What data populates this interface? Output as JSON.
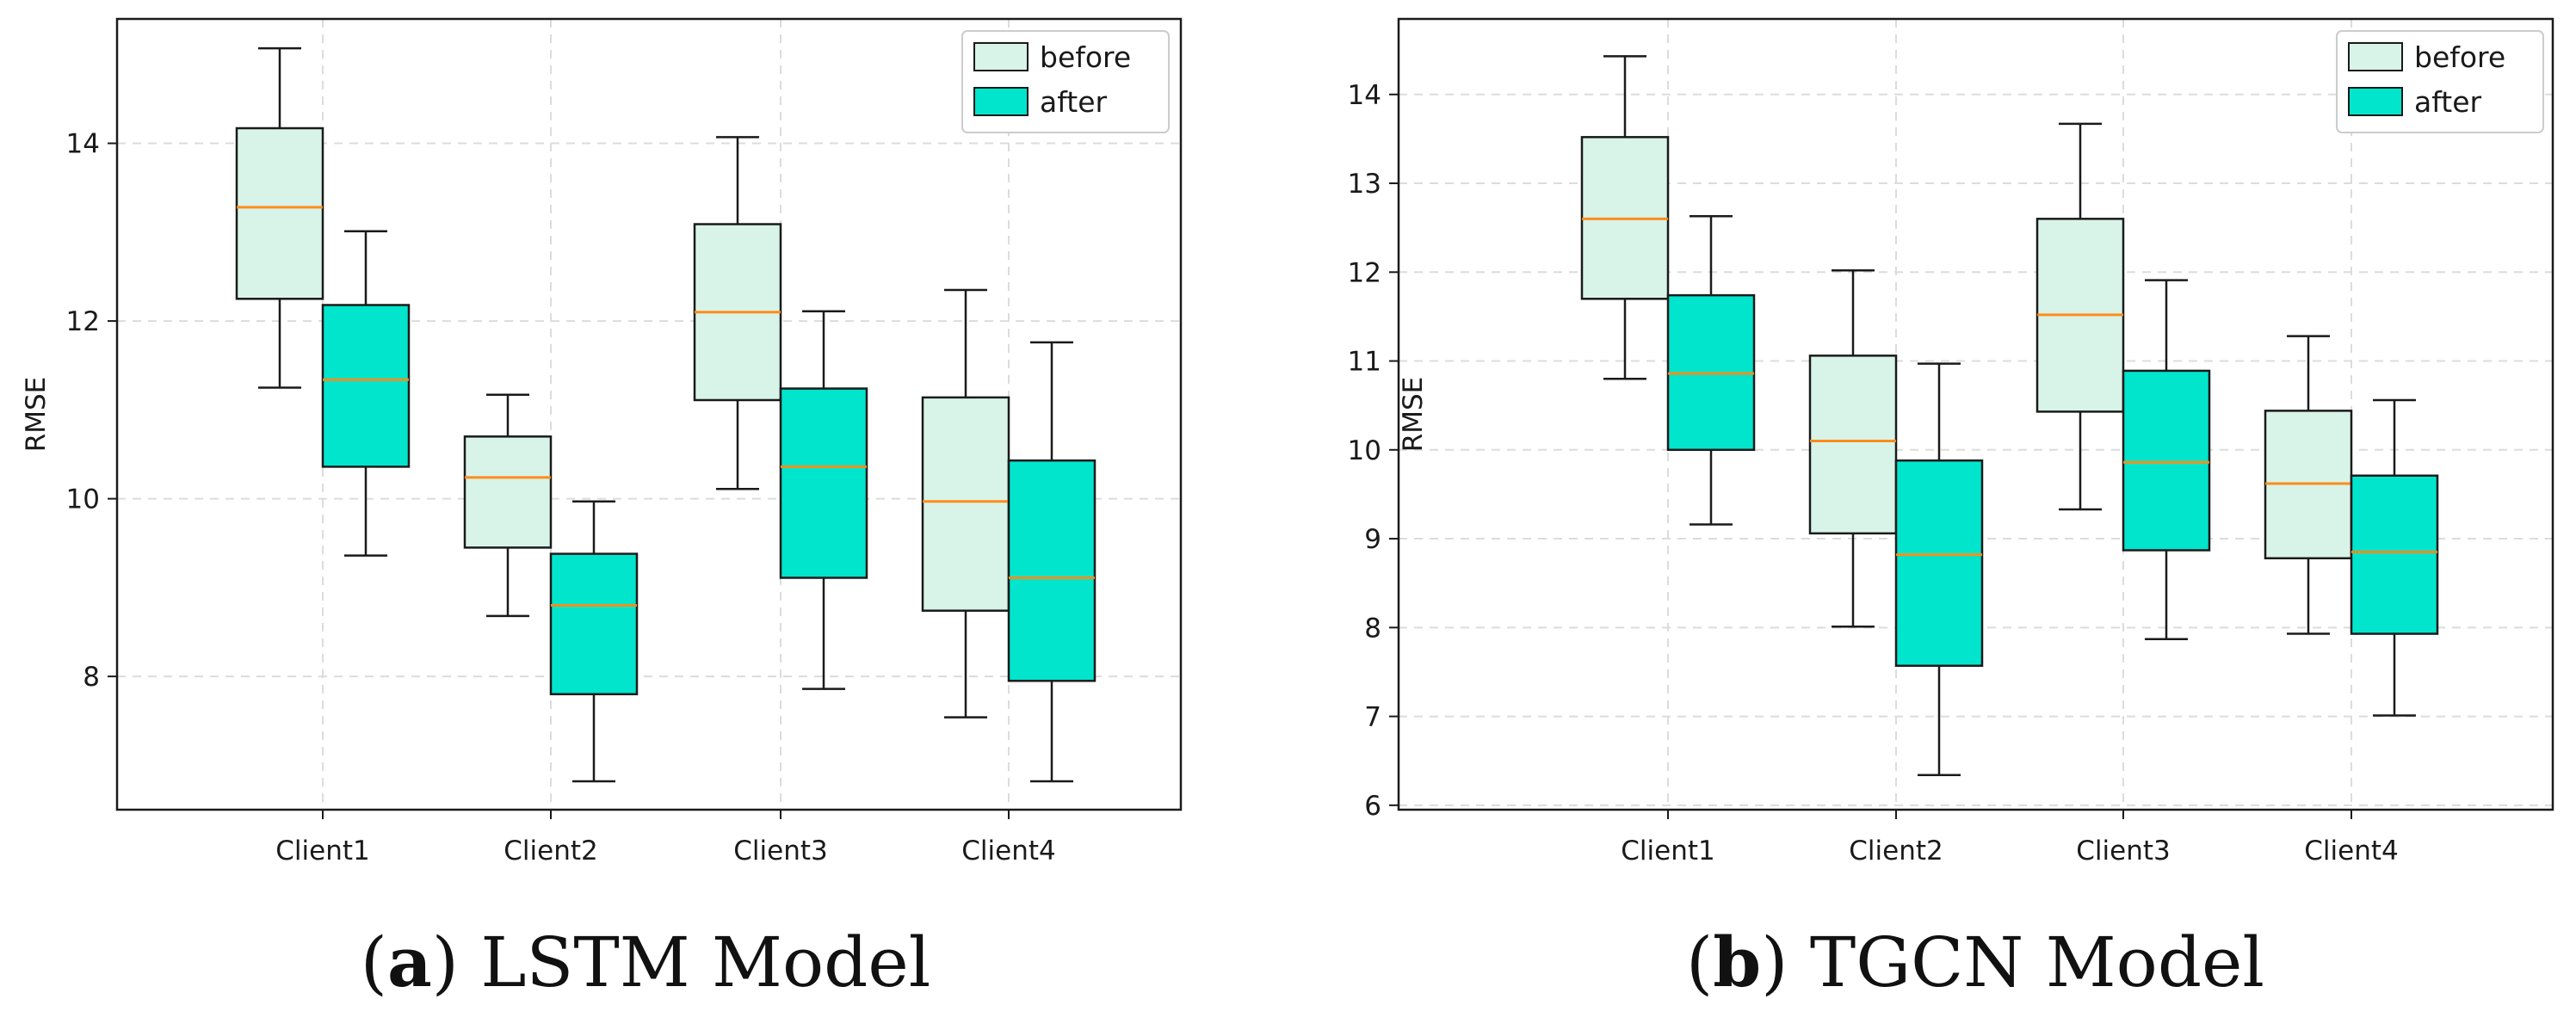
{
  "chart_data": [
    {
      "type": "box",
      "caption_letter": "a",
      "caption_text": "LSTM Model",
      "ylabel": "RMSE",
      "ylim": [
        6.5,
        15.4
      ],
      "yticks": [
        8,
        10,
        12,
        14
      ],
      "grid": true,
      "legend_placement": "top-right",
      "categories": [
        "Client1",
        "Client2",
        "Client3",
        "Client4"
      ],
      "series": [
        {
          "name": "before",
          "boxes": [
            {
              "whisker_low": 11.25,
              "q1": 12.25,
              "median": 13.28,
              "q3": 14.17,
              "whisker_high": 15.07
            },
            {
              "whisker_low": 8.68,
              "q1": 9.45,
              "median": 10.24,
              "q3": 10.7,
              "whisker_high": 11.17
            },
            {
              "whisker_low": 10.11,
              "q1": 11.11,
              "median": 12.1,
              "q3": 13.09,
              "whisker_high": 14.07
            },
            {
              "whisker_low": 7.54,
              "q1": 8.74,
              "median": 9.97,
              "q3": 11.14,
              "whisker_high": 12.35
            }
          ]
        },
        {
          "name": "after",
          "boxes": [
            {
              "whisker_low": 9.36,
              "q1": 10.36,
              "median": 11.34,
              "q3": 12.18,
              "whisker_high": 13.01
            },
            {
              "whisker_low": 6.82,
              "q1": 7.8,
              "median": 8.8,
              "q3": 9.38,
              "whisker_high": 9.97
            },
            {
              "whisker_low": 7.86,
              "q1": 9.11,
              "median": 10.36,
              "q3": 11.24,
              "whisker_high": 12.11
            },
            {
              "whisker_low": 6.82,
              "q1": 7.95,
              "median": 9.11,
              "q3": 10.43,
              "whisker_high": 11.76
            }
          ]
        }
      ]
    },
    {
      "type": "box",
      "caption_letter": "b",
      "caption_text": "TGCN Model",
      "ylabel": "RMSE",
      "ylim": [
        5.95,
        14.85
      ],
      "yticks": [
        6,
        7,
        8,
        9,
        10,
        11,
        12,
        13,
        14
      ],
      "grid": true,
      "legend_placement": "top-right",
      "categories": [
        "Client1",
        "Client2",
        "Client3",
        "Client4"
      ],
      "series": [
        {
          "name": "before",
          "boxes": [
            {
              "whisker_low": 10.8,
              "q1": 11.7,
              "median": 12.6,
              "q3": 13.52,
              "whisker_high": 14.43
            },
            {
              "whisker_low": 8.01,
              "q1": 9.06,
              "median": 10.1,
              "q3": 11.06,
              "whisker_high": 12.02
            },
            {
              "whisker_low": 9.33,
              "q1": 10.43,
              "median": 11.52,
              "q3": 12.6,
              "whisker_high": 13.67
            },
            {
              "whisker_low": 7.93,
              "q1": 8.78,
              "median": 9.62,
              "q3": 10.44,
              "whisker_high": 11.28
            }
          ]
        },
        {
          "name": "after",
          "boxes": [
            {
              "whisker_low": 9.16,
              "q1": 10.0,
              "median": 10.86,
              "q3": 11.74,
              "whisker_high": 12.63
            },
            {
              "whisker_low": 6.34,
              "q1": 7.57,
              "median": 8.82,
              "q3": 9.88,
              "whisker_high": 10.97
            },
            {
              "whisker_low": 7.87,
              "q1": 8.87,
              "median": 9.86,
              "q3": 10.89,
              "whisker_high": 11.91
            },
            {
              "whisker_low": 7.01,
              "q1": 7.93,
              "median": 8.85,
              "q3": 9.71,
              "whisker_high": 10.56
            }
          ]
        }
      ]
    }
  ],
  "colors": {
    "before_fill": "#d8f4e8",
    "after_fill": "#00e5cc",
    "median": "#ff8c1a",
    "outline": "#1a1a1a",
    "grid": "#dcdcdc"
  }
}
